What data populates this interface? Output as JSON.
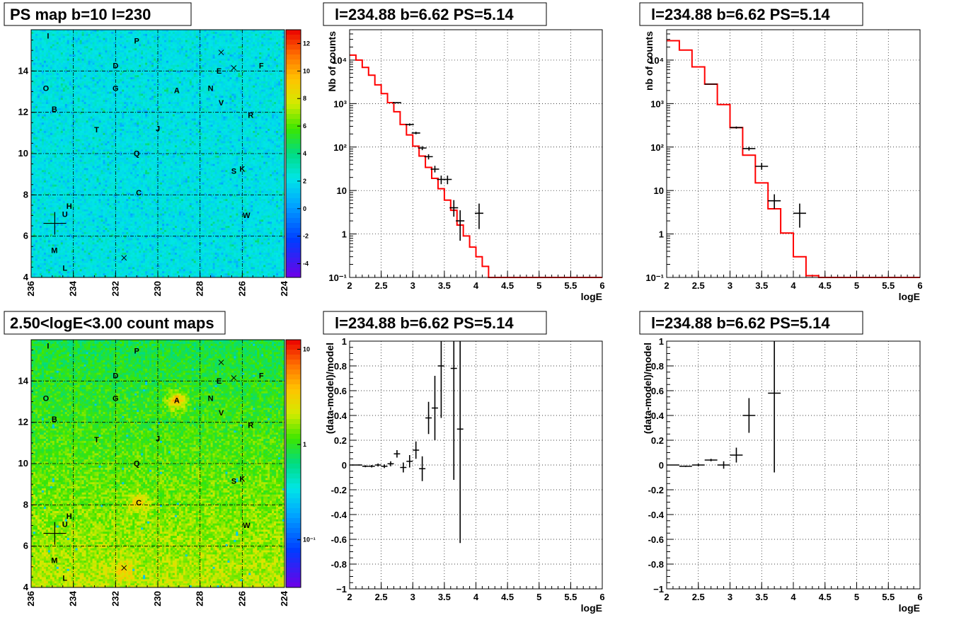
{
  "colors": {
    "model_line": "#ff0000",
    "data_points": "#000000",
    "grid": "#000000"
  },
  "maps": [
    {
      "title": "PS map b=10 l=230",
      "scale": "linear",
      "colorbar_ticks": [
        "12",
        "10",
        "8",
        "6",
        "4",
        "2",
        "0",
        "-2",
        "-4"
      ],
      "colorbar_values": [
        12,
        10,
        8,
        6,
        4,
        2,
        0,
        -2,
        -4
      ],
      "xlim": [
        236,
        224
      ],
      "ylim": [
        4,
        16
      ],
      "x_ticks": [
        "236",
        "234",
        "232",
        "230",
        "228",
        "226",
        "224"
      ],
      "y_ticks": [
        "4",
        "6",
        "8",
        "10",
        "12",
        "14"
      ],
      "sources": [
        {
          "label": "I",
          "l": 235.2,
          "b": 15.7
        },
        {
          "label": "P",
          "l": 231.0,
          "b": 15.45
        },
        {
          "label": "D",
          "l": 232.0,
          "b": 14.25
        },
        {
          "label": "E",
          "l": 227.1,
          "b": 14.0
        },
        {
          "label": "F",
          "l": 225.1,
          "b": 14.25
        },
        {
          "label": "O",
          "l": 235.3,
          "b": 13.15
        },
        {
          "label": "G",
          "l": 232.0,
          "b": 13.15
        },
        {
          "label": "A",
          "l": 229.1,
          "b": 13.05
        },
        {
          "label": "N",
          "l": 227.5,
          "b": 13.15
        },
        {
          "label": "V",
          "l": 227.0,
          "b": 12.45
        },
        {
          "label": "B",
          "l": 234.9,
          "b": 12.15
        },
        {
          "label": "R",
          "l": 225.6,
          "b": 11.85
        },
        {
          "label": "T",
          "l": 232.9,
          "b": 11.15
        },
        {
          "label": "J",
          "l": 230.0,
          "b": 11.2
        },
        {
          "label": "Q",
          "l": 231.0,
          "b": 10.0
        },
        {
          "label": "S",
          "l": 226.4,
          "b": 9.15
        },
        {
          "label": "K",
          "l": 226.0,
          "b": 9.25
        },
        {
          "label": "C",
          "l": 230.9,
          "b": 8.1
        },
        {
          "label": "H",
          "l": 234.2,
          "b": 7.45
        },
        {
          "label": "U",
          "l": 234.4,
          "b": 7.05
        },
        {
          "label": "W",
          "l": 225.8,
          "b": 7.0
        },
        {
          "label": "M",
          "l": 234.9,
          "b": 5.3
        },
        {
          "label": "L",
          "l": 234.4,
          "b": 4.45
        }
      ],
      "crosses": [
        {
          "l": 227.0,
          "b": 14.9
        },
        {
          "l": 226.4,
          "b": 14.15
        },
        {
          "l": 231.6,
          "b": 4.95
        }
      ],
      "plus_marker": {
        "l": 234.88,
        "b": 6.62
      }
    },
    {
      "title": "2.50<logE<3.00 count maps",
      "scale": "log",
      "colorbar_ticks": [
        "10",
        "1",
        "10⁻¹"
      ],
      "colorbar_values": [
        10,
        1,
        0.1
      ],
      "xlim": [
        236,
        224
      ],
      "ylim": [
        4,
        16
      ],
      "x_ticks": [
        "236",
        "234",
        "232",
        "230",
        "228",
        "226",
        "224"
      ],
      "y_ticks": [
        "4",
        "6",
        "8",
        "10",
        "12",
        "14"
      ],
      "sources": [
        {
          "label": "I",
          "l": 235.2,
          "b": 15.7
        },
        {
          "label": "P",
          "l": 231.0,
          "b": 15.45
        },
        {
          "label": "D",
          "l": 232.0,
          "b": 14.25
        },
        {
          "label": "E",
          "l": 227.1,
          "b": 14.0
        },
        {
          "label": "F",
          "l": 225.1,
          "b": 14.25
        },
        {
          "label": "O",
          "l": 235.3,
          "b": 13.15
        },
        {
          "label": "G",
          "l": 232.0,
          "b": 13.15
        },
        {
          "label": "A",
          "l": 229.1,
          "b": 13.05
        },
        {
          "label": "N",
          "l": 227.5,
          "b": 13.15
        },
        {
          "label": "V",
          "l": 227.0,
          "b": 12.45
        },
        {
          "label": "B",
          "l": 234.9,
          "b": 12.15
        },
        {
          "label": "R",
          "l": 225.6,
          "b": 11.85
        },
        {
          "label": "T",
          "l": 232.9,
          "b": 11.15
        },
        {
          "label": "J",
          "l": 230.0,
          "b": 11.2
        },
        {
          "label": "Q",
          "l": 231.0,
          "b": 10.0
        },
        {
          "label": "S",
          "l": 226.4,
          "b": 9.15
        },
        {
          "label": "K",
          "l": 226.0,
          "b": 9.25
        },
        {
          "label": "C",
          "l": 230.9,
          "b": 8.1
        },
        {
          "label": "H",
          "l": 234.2,
          "b": 7.45
        },
        {
          "label": "U",
          "l": 234.4,
          "b": 7.05
        },
        {
          "label": "W",
          "l": 225.8,
          "b": 7.0
        },
        {
          "label": "M",
          "l": 234.9,
          "b": 5.3
        },
        {
          "label": "L",
          "l": 234.4,
          "b": 4.45
        }
      ],
      "crosses": [
        {
          "l": 227.0,
          "b": 14.9
        },
        {
          "l": 226.4,
          "b": 14.15
        },
        {
          "l": 231.6,
          "b": 4.95
        }
      ],
      "plus_marker": {
        "l": 234.88,
        "b": 6.62
      }
    }
  ],
  "chart_data": [
    {
      "type": "line",
      "title": "l=234.88 b=6.62 PS=5.14",
      "xlabel": "logE",
      "ylabel": "Nb of counts",
      "xlim": [
        2,
        6
      ],
      "ylim": [
        0.1,
        50000
      ],
      "yscale": "log",
      "grid": true,
      "x_ticks": [
        "2",
        "2.5",
        "3",
        "3.5",
        "4",
        "4.5",
        "5",
        "5.5",
        "6"
      ],
      "y_ticks": [
        {
          "v": 0.1,
          "text": "10⁻¹"
        },
        {
          "v": 1,
          "text": "1"
        },
        {
          "v": 10,
          "text": "10"
        },
        {
          "v": 100,
          "text": "10²"
        },
        {
          "v": 1000,
          "text": "10³"
        },
        {
          "v": 10000,
          "text": "10⁴"
        }
      ],
      "series": [
        {
          "kind": "model_step",
          "bin_width": 0.1,
          "x": [
            2.0,
            2.1,
            2.2,
            2.3,
            2.4,
            2.5,
            2.6,
            2.7,
            2.8,
            2.9,
            3.0,
            3.1,
            3.2,
            3.3,
            3.4,
            3.5,
            3.6,
            3.7,
            3.8,
            3.9,
            4.0,
            4.1,
            4.2,
            4.3,
            4.4,
            4.5,
            4.6,
            4.7,
            4.8,
            4.9,
            5.0,
            5.1,
            5.2,
            5.3,
            5.4,
            5.5,
            5.6,
            5.7,
            5.8,
            5.9
          ],
          "values": [
            13000,
            10000,
            6800,
            4500,
            2700,
            1700,
            1050,
            650,
            330,
            190,
            105,
            62,
            34,
            19,
            11,
            6,
            3.5,
            1.6,
            0.9,
            0.5,
            0.3,
            0.18,
            0.1,
            0.1,
            0.1,
            0.1,
            0.1,
            0.1,
            0.1,
            0.1,
            0.1,
            0.1,
            0.1,
            0.1,
            0.1,
            0.1,
            0.1,
            0.1,
            0.1,
            0.1
          ]
        },
        {
          "kind": "data_points",
          "x": [
            2.75,
            2.95,
            3.05,
            3.15,
            3.25,
            3.35,
            3.45,
            3.55,
            3.65,
            3.75,
            4.05
          ],
          "y": [
            1050,
            330,
            210,
            95,
            60,
            31,
            18,
            18,
            4,
            2,
            3
          ],
          "err_low": [
            1020,
            310,
            196,
            85,
            52,
            26,
            14,
            14,
            2.5,
            0.7,
            1.3
          ],
          "err_high": [
            1085,
            350,
            225,
            105,
            68,
            37,
            22,
            22,
            6,
            3.5,
            5
          ]
        }
      ]
    },
    {
      "type": "line",
      "title": "l=234.88 b=6.62 PS=5.14",
      "xlabel": "logE",
      "ylabel": "nb of counts",
      "xlim": [
        2,
        6
      ],
      "ylim": [
        0.1,
        50000
      ],
      "yscale": "log",
      "grid": true,
      "x_ticks": [
        "2",
        "2.5",
        "3",
        "3.5",
        "4",
        "4.5",
        "5",
        "5.5",
        "6"
      ],
      "y_ticks": [
        {
          "v": 0.1,
          "text": "10⁻¹"
        },
        {
          "v": 1,
          "text": "1"
        },
        {
          "v": 10,
          "text": "10"
        },
        {
          "v": 100,
          "text": "10²"
        },
        {
          "v": 1000,
          "text": "10³"
        },
        {
          "v": 10000,
          "text": "10⁴"
        }
      ],
      "series": [
        {
          "kind": "model_step",
          "bin_width": 0.2,
          "x": [
            2.0,
            2.2,
            2.4,
            2.6,
            2.8,
            3.0,
            3.2,
            3.4,
            3.6,
            3.8,
            4.0,
            4.2,
            4.4,
            4.6,
            4.8,
            5.0,
            5.2,
            5.4,
            5.6,
            5.8
          ],
          "values": [
            28000,
            17000,
            7000,
            2800,
            950,
            280,
            65,
            15,
            3.8,
            1.05,
            0.3,
            0.11,
            0.1,
            0.1,
            0.1,
            0.1,
            0.1,
            0.1,
            0.1,
            0.1
          ]
        },
        {
          "kind": "data_points",
          "x": [
            2.7,
            3.1,
            3.3,
            3.5,
            3.7,
            4.1
          ],
          "y": [
            2800,
            280,
            92,
            36,
            5.8,
            3
          ],
          "err_low": [
            2740,
            265,
            83,
            30,
            3.8,
            1.4
          ],
          "err_high": [
            2860,
            296,
            102,
            43,
            8.2,
            5
          ]
        }
      ]
    },
    {
      "type": "scatter",
      "title": "l=234.88 b=6.62 PS=5.14",
      "xlabel": "logE",
      "ylabel": "(data-model)/model",
      "xlim": [
        2,
        6
      ],
      "ylim": [
        -1,
        1
      ],
      "grid": true,
      "x_ticks": [
        "2",
        "2.5",
        "3",
        "3.5",
        "4",
        "4.5",
        "5",
        "5.5",
        "6"
      ],
      "y_ticks": [
        "1",
        "0.8",
        "0.6",
        "0.4",
        "0.2",
        "0",
        "-0.2",
        "-0.4",
        "-0.6",
        "-0.8",
        "−1"
      ],
      "series": [
        {
          "kind": "residuals",
          "bin_half": 0.05,
          "x": [
            2.05,
            2.15,
            2.25,
            2.35,
            2.45,
            2.55,
            2.65,
            2.75,
            2.85,
            2.95,
            3.05,
            3.15,
            3.25,
            3.35,
            3.45,
            3.65,
            3.75
          ],
          "y": [
            0.0,
            0.0,
            -0.01,
            -0.01,
            0.0,
            -0.01,
            0.01,
            0.09,
            -0.02,
            0.03,
            0.12,
            -0.03,
            0.38,
            0.46,
            0.8,
            0.78,
            0.29
          ],
          "err": [
            0.005,
            0.005,
            0.008,
            0.01,
            0.012,
            0.015,
            0.02,
            0.03,
            0.04,
            0.05,
            0.07,
            0.1,
            0.13,
            0.26,
            0.42,
            0.9,
            0.92
          ]
        }
      ]
    },
    {
      "type": "scatter",
      "title": "l=234.88 b=6.62 PS=5.14",
      "xlabel": "logE",
      "ylabel": "(data-model)/model",
      "xlim": [
        2,
        6
      ],
      "ylim": [
        -1,
        1
      ],
      "grid": true,
      "x_ticks": [
        "2",
        "2.5",
        "3",
        "3.5",
        "4",
        "4.5",
        "5",
        "5.5",
        "6"
      ],
      "y_ticks": [
        "1",
        "0.8",
        "0.6",
        "0.4",
        "0.2",
        "0",
        "-0.2",
        "-0.4",
        "-0.6",
        "-0.8",
        "−1"
      ],
      "series": [
        {
          "kind": "residuals",
          "bin_half": 0.1,
          "x": [
            2.1,
            2.3,
            2.5,
            2.7,
            2.9,
            3.1,
            3.3,
            3.7
          ],
          "y": [
            0.0,
            -0.01,
            0.0,
            0.04,
            0.0,
            0.08,
            0.4,
            0.58
          ],
          "err": [
            0.004,
            0.006,
            0.01,
            0.01,
            0.03,
            0.06,
            0.14,
            0.64
          ]
        }
      ]
    }
  ]
}
